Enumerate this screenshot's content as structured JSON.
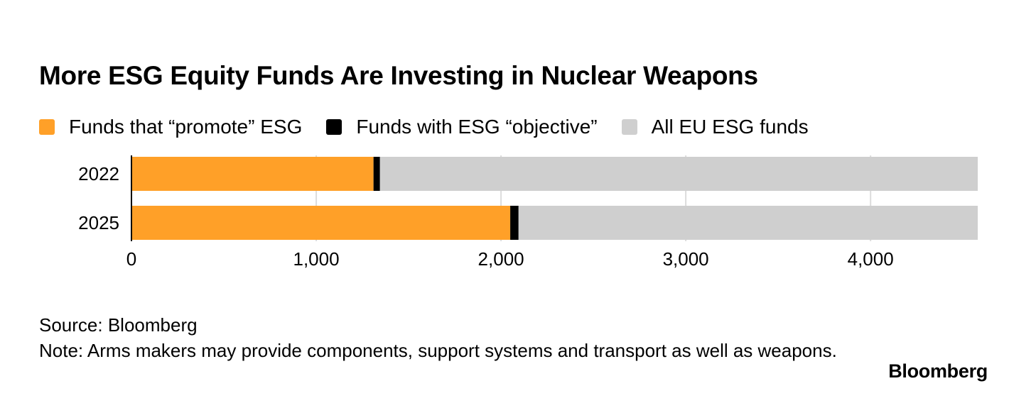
{
  "header": {
    "title": "More ESG Equity Funds Are Investing in Nuclear Weapons"
  },
  "chart_data": {
    "type": "bar",
    "orientation": "horizontal",
    "stacked": true,
    "categories": [
      "2022",
      "2025"
    ],
    "series": [
      {
        "name": "Funds that “promote” ESG",
        "color": "#FFA028",
        "values": [
          1310,
          2050
        ]
      },
      {
        "name": "Funds with ESG “objective”",
        "color": "#000000",
        "values": [
          35,
          45
        ]
      },
      {
        "name": "All EU ESG funds",
        "color": "#CFCFCF",
        "values": [
          3235,
          2485
        ]
      }
    ],
    "xlim": [
      0,
      4580
    ],
    "xticks": [
      0,
      1000,
      2000,
      3000,
      4000
    ],
    "xtick_labels": [
      "0",
      "1,000",
      "2,000",
      "3,000",
      "4,000"
    ],
    "grid": true,
    "legend_position": "top-left"
  },
  "footer": {
    "source": "Source: Bloomberg",
    "note": "Note: Arms makers may provide components, support systems and transport as well as weapons.",
    "logo_text": "Bloomberg"
  }
}
